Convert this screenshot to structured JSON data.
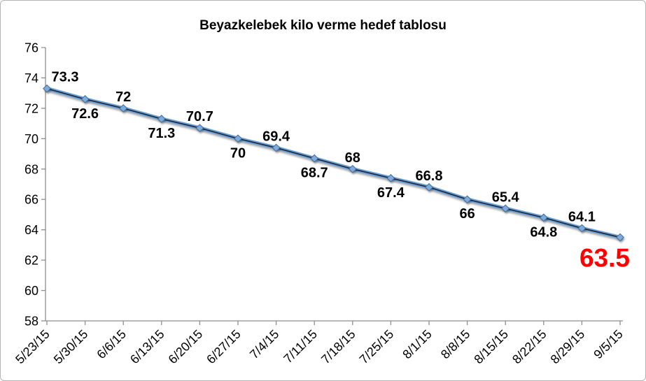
{
  "window": {
    "background": "#FFFFFF",
    "frame_border_color": "#B5B5B5"
  },
  "chart_data": {
    "type": "line",
    "title": "Beyazkelebek kilo verme hedef tablosu",
    "categories": [
      "5/23/15",
      "5/30/15",
      "6/6/15",
      "6/13/15",
      "6/20/15",
      "6/27/15",
      "7/4/15",
      "7/11/15",
      "7/18/15",
      "7/25/15",
      "8/1/15",
      "8/8/15",
      "8/15/15",
      "8/22/15",
      "8/29/15",
      "9/5/15"
    ],
    "values": [
      73.3,
      72.6,
      72,
      71.3,
      70.7,
      70,
      69.4,
      68.7,
      68,
      67.4,
      66.8,
      66,
      65.4,
      64.8,
      64.1,
      63.5
    ],
    "point_labels": [
      "73.3",
      "72.6",
      "72",
      "71.3",
      "70.7",
      "70",
      "69.4",
      "68.7",
      "68",
      "67.4",
      "66.8",
      "66",
      "65.4",
      "64.8",
      "64.1",
      "63.5"
    ],
    "xlabel": "",
    "ylabel": "",
    "ylim": [
      58,
      76
    ],
    "yticks": [
      58,
      60,
      62,
      64,
      66,
      68,
      70,
      72,
      74,
      76
    ],
    "grid": false,
    "legend": false,
    "x_tick_rotation_deg": 45,
    "label_pattern": "alternate-above-below",
    "final_label": {
      "text": "63.5",
      "color": "#FF0000",
      "emphasis": "large-bold"
    },
    "colors": {
      "line_outer": "#6EA0D2",
      "line_core": "#1B2A44",
      "marker_fill": "#7FABDC",
      "marker_stroke": "#3F6E9F",
      "data_label": "#000000",
      "axis_line": "#8E8E8E",
      "tick_label": "#000000",
      "title": "#000000",
      "final_value": "#FF0000"
    }
  }
}
